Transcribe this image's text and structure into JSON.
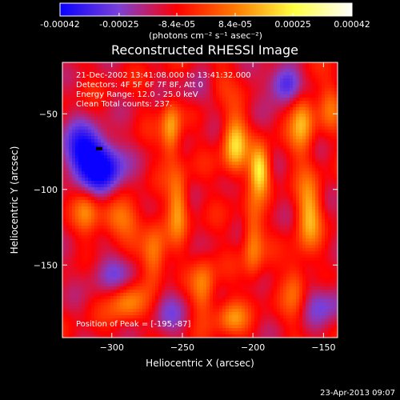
{
  "chart_data": {
    "type": "heatmap",
    "title": "Reconstructed RHESSI Image",
    "xlabel": "Heliocentric X (arcsec)",
    "ylabel": "Heliocentric Y (arcsec)",
    "xlim": [
      -335,
      -140
    ],
    "ylim": [
      -198,
      -16
    ],
    "xticks": [
      -300,
      -250,
      -200,
      -150
    ],
    "yticks": [
      -50,
      -100,
      -150
    ],
    "colorbar": {
      "min": -0.00042,
      "max": 0.00042,
      "ticks": [
        {
          "value": -0.00042,
          "label": "-0.00042"
        },
        {
          "value": -0.00025,
          "label": "-0.00025"
        },
        {
          "value": -8.4e-05,
          "label": "-8.4e-05"
        },
        {
          "value": 8.4e-05,
          "label": "8.4e-05"
        },
        {
          "value": 0.00025,
          "label": "0.00025"
        },
        {
          "value": 0.00042,
          "label": "0.00042"
        }
      ],
      "unit_label": "(photons cm⁻² s⁻¹ asec⁻²)",
      "colors": [
        "#0a00ff",
        "#7a40d8",
        "#ff0000",
        "#ff7a00",
        "#ffff40",
        "#ffffff"
      ]
    },
    "info_lines": [
      "21-Dec-2002 13:41:08.000 to 13:41:32.000",
      "Detectors: 4F 5F 6F 7F 8F, Att 0",
      "Energy Range: 12.0 - 25.0 keV",
      "Clean    Total counts: 237."
    ],
    "peak_text": "Position of Peak = [-195,-87]",
    "peak": {
      "x": -195,
      "y": -87
    },
    "marker": {
      "x": -309,
      "y": -73
    },
    "features": [
      {
        "x": -320,
        "y": -75,
        "v": -0.00032,
        "sx": 12,
        "sy": 12
      },
      {
        "x": -305,
        "y": -88,
        "v": -0.00028,
        "sx": 10,
        "sy": 12
      },
      {
        "x": -177,
        "y": -30,
        "v": -0.00026,
        "sx": 9,
        "sy": 9
      },
      {
        "x": -148,
        "y": -175,
        "v": -0.00015,
        "sx": 12,
        "sy": 10
      },
      {
        "x": -238,
        "y": -35,
        "v": -8e-05,
        "sx": 14,
        "sy": 10
      },
      {
        "x": -258,
        "y": -180,
        "v": -0.0001,
        "sx": 10,
        "sy": 12
      },
      {
        "x": -300,
        "y": -155,
        "v": -0.00012,
        "sx": 14,
        "sy": 10
      },
      {
        "x": -258,
        "y": -60,
        "v": 0.00025,
        "sx": 5,
        "sy": 14
      },
      {
        "x": -253,
        "y": -110,
        "v": 0.00023,
        "sx": 5,
        "sy": 16
      },
      {
        "x": -213,
        "y": -70,
        "v": 0.0003,
        "sx": 6,
        "sy": 14
      },
      {
        "x": -195,
        "y": -87,
        "v": 0.00035,
        "sx": 5,
        "sy": 11
      },
      {
        "x": -200,
        "y": -135,
        "v": 0.0002,
        "sx": 5,
        "sy": 18
      },
      {
        "x": -165,
        "y": -55,
        "v": 0.00025,
        "sx": 6,
        "sy": 16
      },
      {
        "x": -160,
        "y": -115,
        "v": 0.00025,
        "sx": 6,
        "sy": 16
      },
      {
        "x": -170,
        "y": -165,
        "v": 0.00015,
        "sx": 6,
        "sy": 16
      },
      {
        "x": -270,
        "y": -145,
        "v": 0.00022,
        "sx": 6,
        "sy": 14
      },
      {
        "x": -290,
        "y": -175,
        "v": 0.0002,
        "sx": 9,
        "sy": 9
      },
      {
        "x": -295,
        "y": -120,
        "v": 0.00018,
        "sx": 12,
        "sy": 9
      },
      {
        "x": -235,
        "y": -165,
        "v": 0.0002,
        "sx": 6,
        "sy": 14
      },
      {
        "x": -225,
        "y": -30,
        "v": 0.00012,
        "sx": 7,
        "sy": 9
      },
      {
        "x": -318,
        "y": -115,
        "v": 0.00015,
        "sx": 6,
        "sy": 10
      },
      {
        "x": -145,
        "y": -45,
        "v": 0.00012,
        "sx": 6,
        "sy": 12
      },
      {
        "x": -215,
        "y": -185,
        "v": 0.00018,
        "sx": 8,
        "sy": 8
      }
    ]
  },
  "footer": {
    "timestamp": "23-Apr-2013 09:07"
  }
}
